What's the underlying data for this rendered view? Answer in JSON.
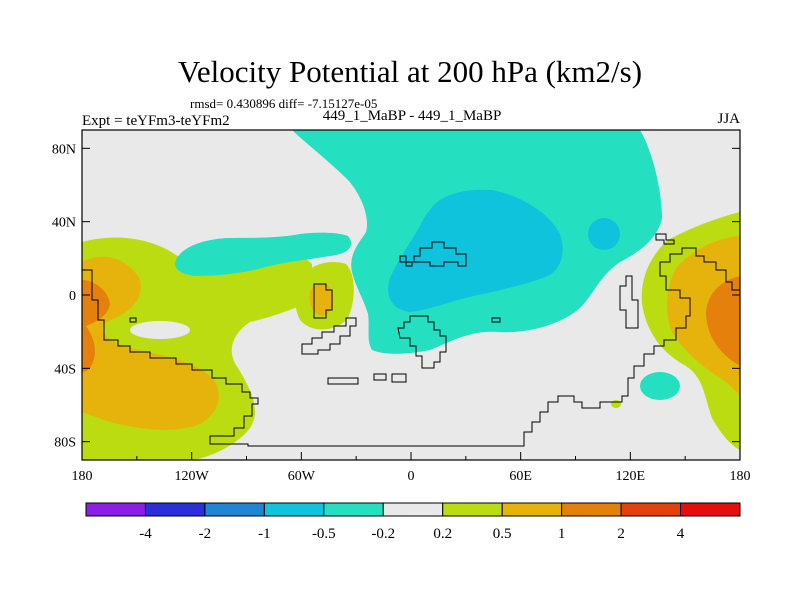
{
  "chart_data": {
    "type": "heatmap",
    "title": "Velocity Potential at 200 hPa (km2/s)",
    "stats_line": "rmsd= 0.430896 diff= -7.15127e-05",
    "left_label": "Expt = teYFm3-teYFm2",
    "center_label": "449_1_MaBP - 449_1_MaBP",
    "season": "JJA",
    "x_ticks": [
      "180",
      "120W",
      "60W",
      "0",
      "60E",
      "120E",
      "180"
    ],
    "y_ticks": [
      "80N",
      "40N",
      "0",
      "40S",
      "80S"
    ],
    "x_range": [
      -180,
      180
    ],
    "y_range": [
      -90,
      90
    ],
    "colorbar": {
      "levels": [
        "-4",
        "-2",
        "-1",
        "-0.5",
        "-0.2",
        "0.2",
        "0.5",
        "1",
        "2",
        "4"
      ],
      "colors": [
        "#8b1fe6",
        "#2b2fd9",
        "#1f86d6",
        "#10c3dc",
        "#24e0c0",
        "#e9e9e9",
        "#bcdc12",
        "#e6b30c",
        "#e4800b",
        "#e3420b",
        "#e50d0d"
      ]
    }
  }
}
